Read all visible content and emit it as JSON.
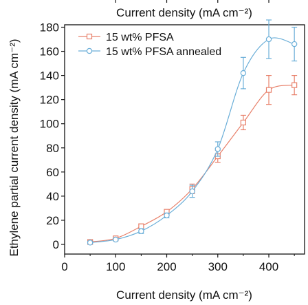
{
  "chart_data": {
    "type": "line",
    "xlabel": "Current density (mA cm⁻²)",
    "ylabel": "Ethylene partial current density (mA cm⁻²)",
    "top_xlabel": "Current density (mA cm⁻²)",
    "xlim": [
      0,
      470
    ],
    "ylim": [
      -8,
      182
    ],
    "x_ticks": [
      0,
      100,
      200,
      300,
      400
    ],
    "y_ticks": [
      0,
      20,
      40,
      60,
      80,
      100,
      120,
      140,
      160,
      180
    ],
    "x": [
      50,
      100,
      150,
      200,
      250,
      300,
      350,
      400,
      450
    ],
    "grid": false,
    "legend_position": "top-left",
    "series": [
      {
        "name": "15 wt% PFSA",
        "color": "#e8806a",
        "marker": "square",
        "values": [
          2,
          5,
          15,
          27,
          46,
          73,
          101,
          128,
          132
        ],
        "errors": [
          1,
          1.5,
          2,
          2,
          4,
          5,
          6,
          12,
          8
        ]
      },
      {
        "name": "15 wt% PFSA annealed",
        "color": "#6aaed8",
        "marker": "circle",
        "values": [
          1.5,
          4,
          11,
          24,
          44,
          79,
          142,
          170,
          166
        ],
        "errors": [
          1,
          1,
          2,
          2,
          5,
          6,
          13,
          16,
          14
        ]
      }
    ]
  }
}
